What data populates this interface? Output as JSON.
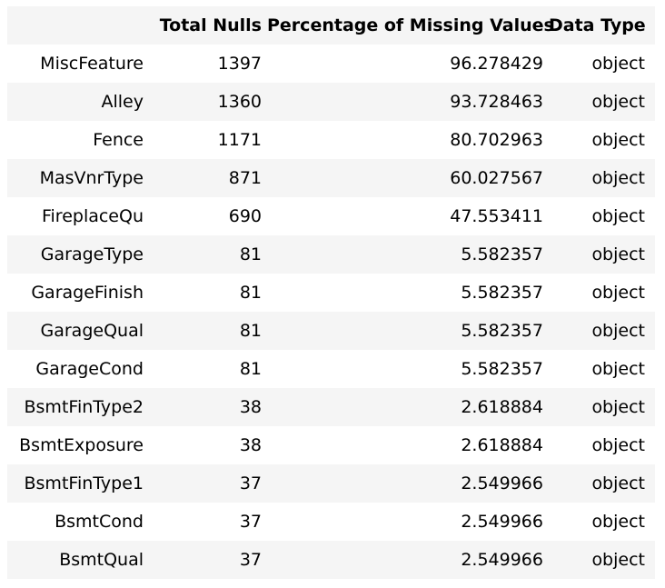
{
  "table": {
    "columns": {
      "index": "",
      "total_nulls": "Total Nulls",
      "percentage": "Percentage of Missing Values",
      "data_type": "Data Type"
    },
    "rows": [
      {
        "name": "MiscFeature",
        "total_nulls": "1397",
        "percentage": "96.278429",
        "data_type": "object"
      },
      {
        "name": "Alley",
        "total_nulls": "1360",
        "percentage": "93.728463",
        "data_type": "object"
      },
      {
        "name": "Fence",
        "total_nulls": "1171",
        "percentage": "80.702963",
        "data_type": "object"
      },
      {
        "name": "MasVnrType",
        "total_nulls": "871",
        "percentage": "60.027567",
        "data_type": "object"
      },
      {
        "name": "FireplaceQu",
        "total_nulls": "690",
        "percentage": "47.553411",
        "data_type": "object"
      },
      {
        "name": "GarageType",
        "total_nulls": "81",
        "percentage": "5.582357",
        "data_type": "object"
      },
      {
        "name": "GarageFinish",
        "total_nulls": "81",
        "percentage": "5.582357",
        "data_type": "object"
      },
      {
        "name": "GarageQual",
        "total_nulls": "81",
        "percentage": "5.582357",
        "data_type": "object"
      },
      {
        "name": "GarageCond",
        "total_nulls": "81",
        "percentage": "5.582357",
        "data_type": "object"
      },
      {
        "name": "BsmtFinType2",
        "total_nulls": "38",
        "percentage": "2.618884",
        "data_type": "object"
      },
      {
        "name": "BsmtExposure",
        "total_nulls": "38",
        "percentage": "2.618884",
        "data_type": "object"
      },
      {
        "name": "BsmtFinType1",
        "total_nulls": "37",
        "percentage": "2.549966",
        "data_type": "object"
      },
      {
        "name": "BsmtCond",
        "total_nulls": "37",
        "percentage": "2.549966",
        "data_type": "object"
      },
      {
        "name": "BsmtQual",
        "total_nulls": "37",
        "percentage": "2.549966",
        "data_type": "object"
      }
    ]
  },
  "colors": {
    "stripe": "#f5f5f5",
    "background": "#ffffff",
    "text": "#000000"
  }
}
